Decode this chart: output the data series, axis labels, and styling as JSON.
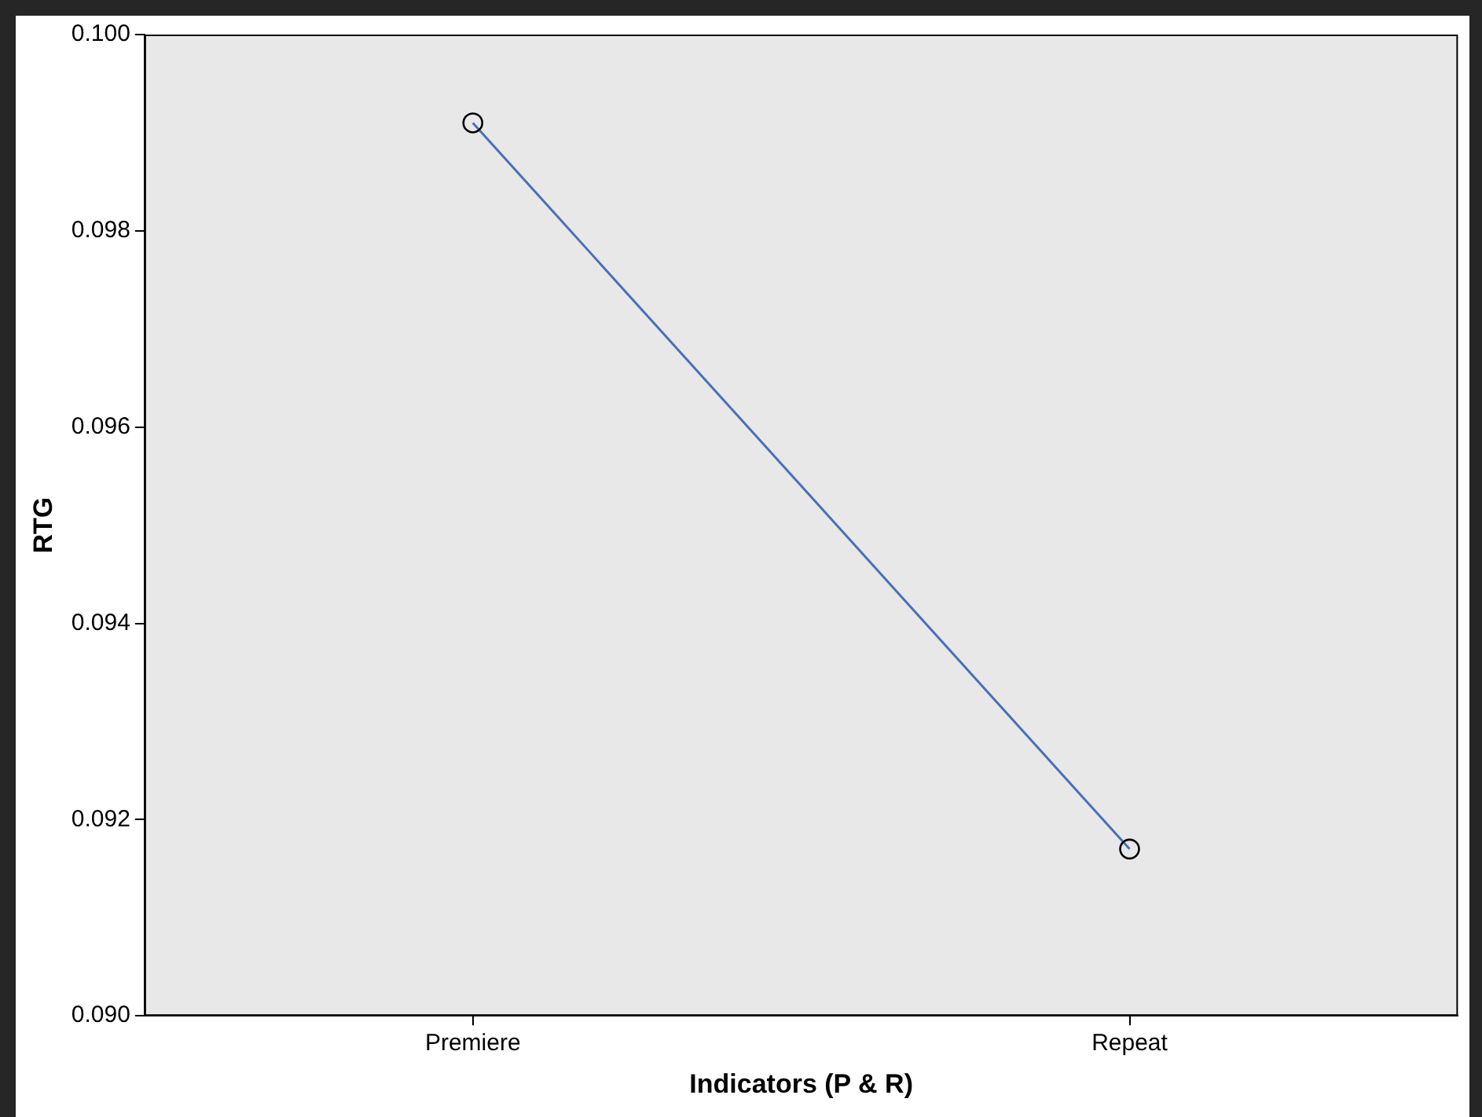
{
  "chart_data": {
    "type": "line",
    "xlabel": "Indicators (P & R)",
    "ylabel": "RTG",
    "categories": [
      "Premiere",
      "Repeat"
    ],
    "series": [
      {
        "color": "#4a6fb5",
        "values": [
          0.0991,
          0.0917
        ]
      }
    ],
    "ylim": [
      0.09,
      0.1
    ],
    "yticks": [
      {
        "value": 0.09,
        "label": "0.090"
      },
      0.092,
      0.094,
      0.096,
      0.098,
      {
        "value": 0.1,
        "label": "0.100"
      }
    ],
    "grid": false,
    "legend": false,
    "marker": "circle",
    "line_style": "solid"
  }
}
